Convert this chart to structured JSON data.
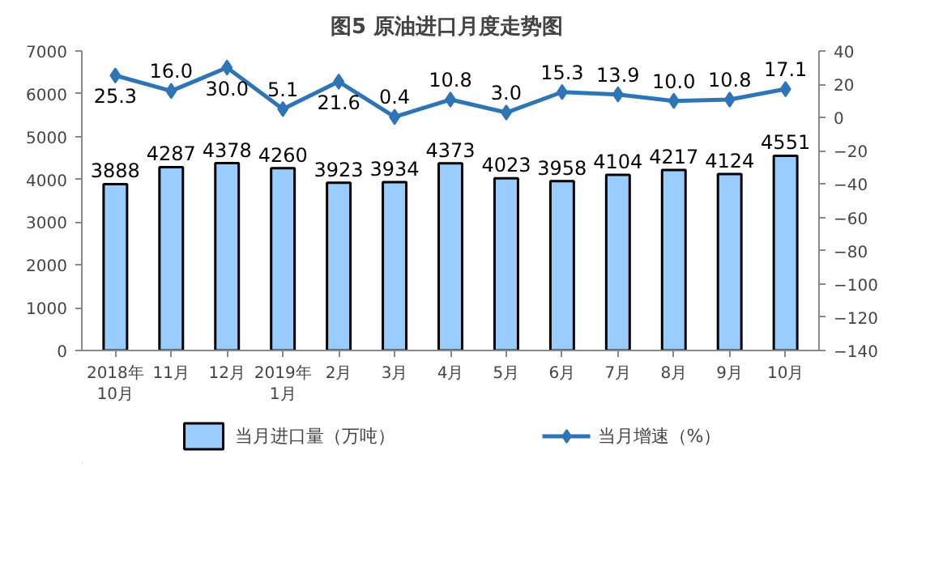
{
  "chart_data": {
    "type": "bar",
    "title": "图5  原油进口月度走势图",
    "categories": [
      "2018年\n10月",
      "11月",
      "12月",
      "2019年\n1月",
      "2月",
      "3月",
      "4月",
      "5月",
      "6月",
      "7月",
      "8月",
      "9月",
      "10月"
    ],
    "series": [
      {
        "name": "当月进口量（万吨）",
        "color": "#99ccff",
        "values": [
          3888,
          4287,
          4378,
          4260,
          3923,
          3934,
          4373,
          4023,
          3958,
          4104,
          4217,
          4124,
          4551
        ],
        "value_labels": [
          "3888",
          "4287",
          "4378",
          "4260",
          "3923",
          "3934",
          "4373",
          "4023",
          "3958",
          "4104",
          "4217",
          "4124",
          "4551"
        ]
      },
      {
        "name": "当月增速（%）",
        "type": "line",
        "axis": "y2",
        "color": "#2e75b6",
        "values": [
          25.3,
          16.0,
          30.0,
          5.1,
          21.6,
          0.4,
          10.8,
          3.0,
          15.3,
          13.9,
          10.0,
          10.8,
          17.1
        ],
        "value_labels": [
          "25.3",
          "16.0",
          "30.0",
          "5.1",
          "21.6",
          "0.4",
          "10.8",
          "3.0",
          "15.3",
          "13.9",
          "10.0",
          "10.8",
          "17.1"
        ]
      }
    ],
    "ylim": [
      0,
      7000
    ],
    "yticks": [
      0,
      1000,
      2000,
      3000,
      4000,
      5000,
      6000,
      7000
    ],
    "y2lim": [
      -140,
      40
    ],
    "y2ticks": [
      -140,
      -120,
      -100,
      -80,
      -60,
      -40,
      -20,
      0,
      20,
      40
    ],
    "legend": "bottom",
    "grid": false,
    "marker": "diamond",
    "line_style": "solid"
  }
}
